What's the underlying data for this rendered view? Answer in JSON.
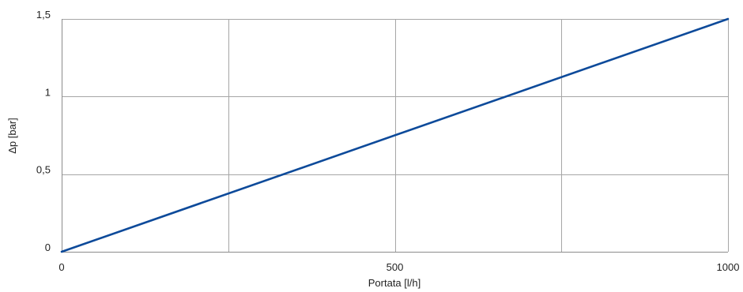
{
  "chart_data": {
    "type": "line",
    "title": "",
    "xlabel": "Portata [l/h]",
    "ylabel": "Δp [bar]",
    "xlim": [
      0,
      1000
    ],
    "ylim": [
      0,
      1.5
    ],
    "x_gridlines": [
      0,
      250,
      500,
      750,
      1000
    ],
    "y_gridlines": [
      0,
      0.5,
      1,
      1.5
    ],
    "x_ticks": [
      {
        "value": 0,
        "label": "0"
      },
      {
        "value": 500,
        "label": "500"
      },
      {
        "value": 1000,
        "label": "1000"
      }
    ],
    "y_ticks": [
      {
        "value": 0,
        "label": "0"
      },
      {
        "value": 0.5,
        "label": "0,5"
      },
      {
        "value": 1,
        "label": "1"
      },
      {
        "value": 1.5,
        "label": "1,5"
      }
    ],
    "grid": true,
    "legend": "none",
    "series": [
      {
        "color": "#0d4a9a",
        "points": [
          {
            "x": 0,
            "y": 0
          },
          {
            "x": 1000,
            "y": 1.5
          }
        ]
      }
    ]
  }
}
